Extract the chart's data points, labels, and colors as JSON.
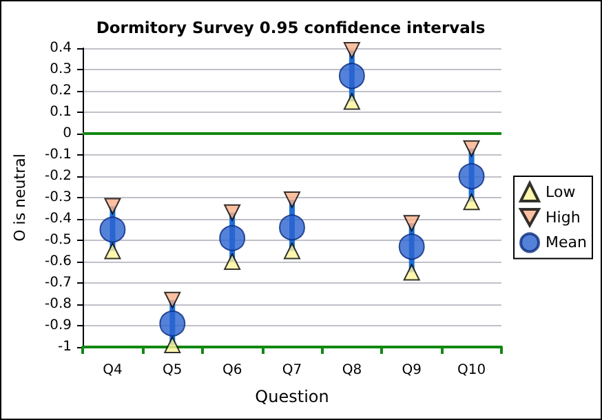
{
  "chart_data": {
    "type": "scatter",
    "title": "Dormitory Survey 0.95 confidence intervals",
    "xlabel": "Question",
    "ylabel": "O is neutral",
    "categories": [
      "Q4",
      "Q5",
      "Q6",
      "Q7",
      "Q8",
      "Q9",
      "Q10"
    ],
    "series": [
      {
        "name": "Low",
        "color": "#fff59a",
        "marker": "triangle",
        "values": [
          -0.55,
          -0.99,
          -0.6,
          -0.55,
          0.15,
          -0.65,
          -0.32
        ]
      },
      {
        "name": "High",
        "color": "#f9b08a",
        "marker": "triangle-down",
        "values": [
          -0.34,
          -0.78,
          -0.37,
          -0.31,
          0.39,
          -0.42,
          -0.07
        ]
      },
      {
        "name": "Mean",
        "color": "#2a63d0",
        "marker": "circle",
        "values": [
          -0.45,
          -0.89,
          -0.49,
          -0.44,
          0.27,
          -0.53,
          -0.2
        ]
      }
    ],
    "ylim": [
      -1,
      0.4
    ],
    "yticks": [
      -1,
      -0.9,
      -0.8,
      -0.7,
      -0.6,
      -0.5,
      -0.4,
      -0.3,
      -0.2,
      -0.1,
      0,
      0.1,
      0.2,
      0.3,
      0.4
    ],
    "ref_lines": [
      {
        "axis": "y",
        "value": 0,
        "color": "#118811"
      }
    ],
    "grid": "y",
    "legend": "right"
  }
}
